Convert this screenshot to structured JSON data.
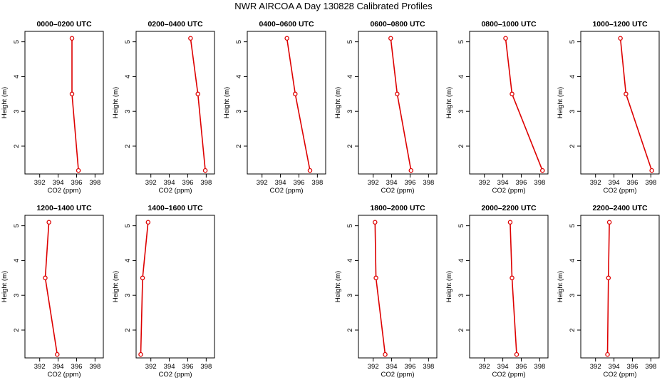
{
  "figure": {
    "title": "NWR AIRCOA A  Day 130828  Calibrated Profiles"
  },
  "colors": {
    "series": "#dd0000",
    "axis": "#000000"
  },
  "chart_data": [
    {
      "type": "line",
      "title": "0000–0200 UTC",
      "xlabel": "CO2 (ppm)",
      "ylabel": "Height (m)",
      "xlim": [
        390.4,
        398.9
      ],
      "ylim": [
        1.2,
        5.3
      ],
      "xticks": [
        392,
        394,
        396,
        398
      ],
      "yticks": [
        2,
        3,
        4,
        5
      ],
      "x": [
        395.5,
        395.5,
        396.2
      ],
      "y": [
        5.1,
        3.5,
        1.3
      ]
    },
    {
      "type": "line",
      "title": "0200–0400 UTC",
      "xlabel": "CO2 (ppm)",
      "ylabel": "Height (m)",
      "xlim": [
        390.4,
        398.9
      ],
      "ylim": [
        1.2,
        5.3
      ],
      "xticks": [
        392,
        394,
        396,
        398
      ],
      "yticks": [
        2,
        3,
        4,
        5
      ],
      "x": [
        396.3,
        397.1,
        397.9
      ],
      "y": [
        5.1,
        3.5,
        1.3
      ]
    },
    {
      "type": "line",
      "title": "0400–0600 UTC",
      "xlabel": "CO2 (ppm)",
      "ylabel": "Height (m)",
      "xlim": [
        390.4,
        398.9
      ],
      "ylim": [
        1.2,
        5.3
      ],
      "xticks": [
        392,
        394,
        396,
        398
      ],
      "yticks": [
        2,
        3,
        4,
        5
      ],
      "x": [
        394.7,
        395.6,
        397.2
      ],
      "y": [
        5.1,
        3.5,
        1.3
      ]
    },
    {
      "type": "line",
      "title": "0600–0800 UTC",
      "xlabel": "CO2 (ppm)",
      "ylabel": "Height (m)",
      "xlim": [
        390.4,
        398.9
      ],
      "ylim": [
        1.2,
        5.3
      ],
      "xticks": [
        392,
        394,
        396,
        398
      ],
      "yticks": [
        2,
        3,
        4,
        5
      ],
      "x": [
        393.9,
        394.6,
        396.1
      ],
      "y": [
        5.1,
        3.5,
        1.3
      ]
    },
    {
      "type": "line",
      "title": "0800–1000 UTC",
      "xlabel": "CO2 (ppm)",
      "ylabel": "Height (m)",
      "xlim": [
        390.4,
        398.9
      ],
      "ylim": [
        1.2,
        5.3
      ],
      "xticks": [
        392,
        394,
        396,
        398
      ],
      "yticks": [
        2,
        3,
        4,
        5
      ],
      "x": [
        394.3,
        395.0,
        398.3
      ],
      "y": [
        5.1,
        3.5,
        1.3
      ]
    },
    {
      "type": "line",
      "title": "1000–1200 UTC",
      "xlabel": "CO2 (ppm)",
      "ylabel": "Height (m)",
      "xlim": [
        390.4,
        398.9
      ],
      "ylim": [
        1.2,
        5.3
      ],
      "xticks": [
        392,
        394,
        396,
        398
      ],
      "yticks": [
        2,
        3,
        4,
        5
      ],
      "x": [
        394.7,
        395.3,
        398.1
      ],
      "y": [
        5.1,
        3.5,
        1.3
      ]
    },
    {
      "type": "line",
      "title": "1200–1400 UTC",
      "xlabel": "CO2 (ppm)",
      "ylabel": "Height (m)",
      "xlim": [
        390.4,
        398.9
      ],
      "ylim": [
        1.2,
        5.3
      ],
      "xticks": [
        392,
        394,
        396,
        398
      ],
      "yticks": [
        2,
        3,
        4,
        5
      ],
      "x": [
        393.0,
        392.6,
        393.9
      ],
      "y": [
        5.1,
        3.5,
        1.3
      ]
    },
    {
      "type": "line",
      "title": "1400–1600 UTC",
      "xlabel": "CO2 (ppm)",
      "ylabel": "Height (m)",
      "xlim": [
        390.4,
        398.9
      ],
      "ylim": [
        1.2,
        5.3
      ],
      "xticks": [
        392,
        394,
        396,
        398
      ],
      "yticks": [
        2,
        3,
        4,
        5
      ],
      "x": [
        391.7,
        391.1,
        390.9
      ],
      "y": [
        5.1,
        3.5,
        1.3
      ]
    },
    {
      "type": "line",
      "title": "1800–2000 UTC",
      "xlabel": "CO2 (ppm)",
      "ylabel": "Height (m)",
      "xlim": [
        390.4,
        398.9
      ],
      "ylim": [
        1.2,
        5.3
      ],
      "xticks": [
        392,
        394,
        396,
        398
      ],
      "yticks": [
        2,
        3,
        4,
        5
      ],
      "x": [
        392.2,
        392.3,
        393.3
      ],
      "y": [
        5.1,
        3.5,
        1.3
      ]
    },
    {
      "type": "line",
      "title": "2000–2200 UTC",
      "xlabel": "CO2 (ppm)",
      "ylabel": "Height (m)",
      "xlim": [
        390.4,
        398.9
      ],
      "ylim": [
        1.2,
        5.3
      ],
      "xticks": [
        392,
        394,
        396,
        398
      ],
      "yticks": [
        2,
        3,
        4,
        5
      ],
      "x": [
        394.8,
        395.0,
        395.5
      ],
      "y": [
        5.1,
        3.5,
        1.3
      ]
    },
    {
      "type": "line",
      "title": "2200–2400 UTC",
      "xlabel": "CO2 (ppm)",
      "ylabel": "Height (m)",
      "xlim": [
        390.4,
        398.9
      ],
      "ylim": [
        1.2,
        5.3
      ],
      "xticks": [
        392,
        394,
        396,
        398
      ],
      "yticks": [
        2,
        3,
        4,
        5
      ],
      "x": [
        393.5,
        393.4,
        393.3
      ],
      "y": [
        5.1,
        3.5,
        1.3
      ]
    }
  ]
}
